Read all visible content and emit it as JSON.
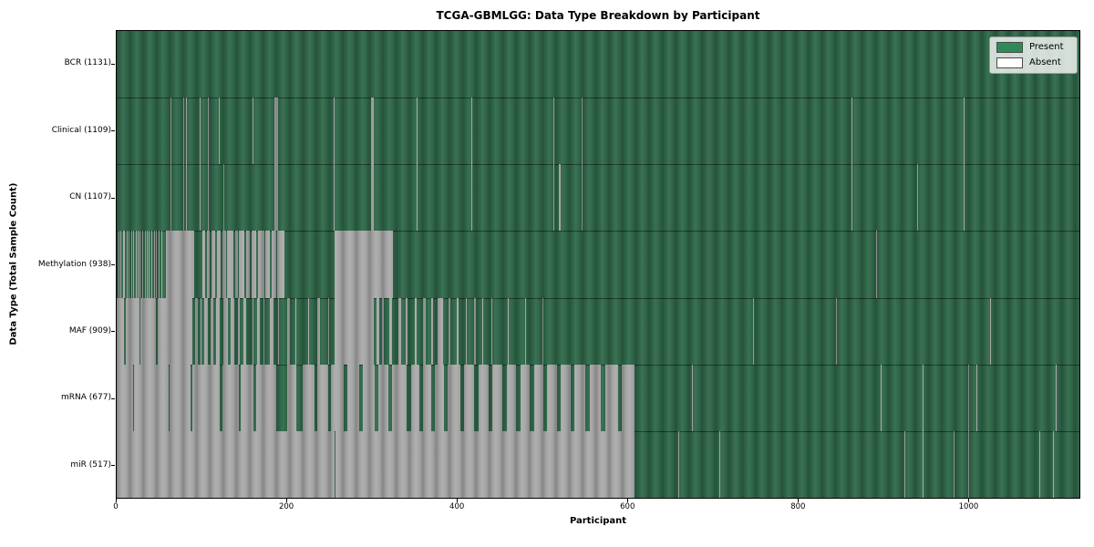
{
  "chart_data": {
    "type": "heatmap",
    "title": "TCGA-GBMLGG: Data Type Breakdown by Participant",
    "xlabel": "Participant",
    "ylabel": "Data Type (Total Sample Count)",
    "n_participants": 1131,
    "x_ticks": [
      0,
      200,
      400,
      600,
      800,
      1000
    ],
    "grid": false,
    "legend": {
      "position": "upper right",
      "present_label": "Present",
      "absent_label": "Absent"
    },
    "colors": {
      "present": "#2E8B57",
      "present_render": "#31694B",
      "absent": "#FFFFFF",
      "absent_render": "#ABABAB"
    },
    "rows": [
      {
        "name": "BCR",
        "label": "BCR (1131)",
        "present_count": 1131,
        "absent_ranges": []
      },
      {
        "name": "Clinical",
        "label": "Clinical (1109)",
        "present_count": 1109,
        "absent_ranges": [
          [
            63,
            63
          ],
          [
            78,
            78
          ],
          [
            81,
            81
          ],
          [
            97,
            97
          ],
          [
            107,
            107
          ],
          [
            120,
            120
          ],
          [
            160,
            160
          ],
          [
            185,
            189
          ],
          [
            255,
            255
          ],
          [
            299,
            301
          ],
          [
            352,
            352
          ],
          [
            417,
            417
          ],
          [
            513,
            513
          ],
          [
            546,
            546
          ],
          [
            863,
            863
          ],
          [
            995,
            995
          ]
        ]
      },
      {
        "name": "CN",
        "label": "CN (1107)",
        "present_count": 1107,
        "absent_ranges": [
          [
            63,
            63
          ],
          [
            78,
            78
          ],
          [
            81,
            81
          ],
          [
            97,
            97
          ],
          [
            107,
            107
          ],
          [
            125,
            125
          ],
          [
            185,
            189
          ],
          [
            255,
            255
          ],
          [
            299,
            301
          ],
          [
            352,
            352
          ],
          [
            417,
            417
          ],
          [
            513,
            513
          ],
          [
            519,
            519
          ],
          [
            521,
            521
          ],
          [
            546,
            546
          ],
          [
            863,
            863
          ],
          [
            940,
            940
          ],
          [
            995,
            995
          ]
        ]
      },
      {
        "name": "Methylation",
        "label": "Methylation (938)",
        "present_count": 938,
        "absent_ranges": [
          [
            2,
            2
          ],
          [
            4,
            4
          ],
          [
            7,
            7
          ],
          [
            9,
            9
          ],
          [
            12,
            12
          ],
          [
            14,
            14
          ],
          [
            17,
            17
          ],
          [
            19,
            19
          ],
          [
            22,
            22
          ],
          [
            25,
            25
          ],
          [
            27,
            27
          ],
          [
            30,
            30
          ],
          [
            33,
            33
          ],
          [
            35,
            35
          ],
          [
            38,
            38
          ],
          [
            41,
            41
          ],
          [
            44,
            44
          ],
          [
            46,
            46
          ],
          [
            49,
            49
          ],
          [
            52,
            52
          ],
          [
            58,
            90
          ],
          [
            101,
            103
          ],
          [
            106,
            108
          ],
          [
            111,
            115
          ],
          [
            118,
            121
          ],
          [
            124,
            127
          ],
          [
            130,
            136
          ],
          [
            139,
            141
          ],
          [
            144,
            149
          ],
          [
            152,
            155
          ],
          [
            158,
            163
          ],
          [
            166,
            172
          ],
          [
            175,
            179
          ],
          [
            182,
            186
          ],
          [
            189,
            196
          ],
          [
            256,
            324
          ],
          [
            892,
            892
          ]
        ]
      },
      {
        "name": "MAF",
        "label": "MAF (909)",
        "present_count": 909,
        "absent_ranges": [
          [
            0,
            8
          ],
          [
            11,
            26
          ],
          [
            28,
            45
          ],
          [
            48,
            88
          ],
          [
            92,
            94
          ],
          [
            98,
            99
          ],
          [
            103,
            106
          ],
          [
            110,
            112
          ],
          [
            117,
            120
          ],
          [
            125,
            130
          ],
          [
            134,
            137
          ],
          [
            142,
            144
          ],
          [
            149,
            151
          ],
          [
            160,
            160
          ],
          [
            165,
            167
          ],
          [
            172,
            172
          ],
          [
            180,
            183
          ],
          [
            190,
            190
          ],
          [
            200,
            202
          ],
          [
            210,
            210
          ],
          [
            225,
            225
          ],
          [
            236,
            238
          ],
          [
            248,
            248
          ],
          [
            256,
            301
          ],
          [
            305,
            307
          ],
          [
            312,
            313
          ],
          [
            320,
            322
          ],
          [
            331,
            333
          ],
          [
            340,
            341
          ],
          [
            350,
            351
          ],
          [
            360,
            362
          ],
          [
            370,
            371
          ],
          [
            377,
            382
          ],
          [
            390,
            391
          ],
          [
            400,
            401
          ],
          [
            410,
            410
          ],
          [
            420,
            421
          ],
          [
            430,
            430
          ],
          [
            440,
            440
          ],
          [
            460,
            460
          ],
          [
            480,
            480
          ],
          [
            500,
            500
          ],
          [
            748,
            748
          ],
          [
            845,
            845
          ],
          [
            1026,
            1026
          ]
        ]
      },
      {
        "name": "mRNA",
        "label": "mRNA (677)",
        "present_count": 677,
        "absent_ranges": [
          [
            0,
            18
          ],
          [
            20,
            60
          ],
          [
            62,
            86
          ],
          [
            89,
            120
          ],
          [
            124,
            142
          ],
          [
            146,
            160
          ],
          [
            164,
            186
          ],
          [
            200,
            210
          ],
          [
            218,
            231
          ],
          [
            236,
            247
          ],
          [
            252,
            266
          ],
          [
            271,
            284
          ],
          [
            289,
            302
          ],
          [
            307,
            318
          ],
          [
            323,
            340
          ],
          [
            346,
            355
          ],
          [
            360,
            369
          ],
          [
            374,
            383
          ],
          [
            389,
            403
          ],
          [
            408,
            419
          ],
          [
            425,
            436
          ],
          [
            441,
            452
          ],
          [
            458,
            468
          ],
          [
            474,
            484
          ],
          [
            490,
            500
          ],
          [
            506,
            516
          ],
          [
            522,
            532
          ],
          [
            538,
            550
          ],
          [
            556,
            568
          ],
          [
            574,
            588
          ],
          [
            593,
            607
          ],
          [
            676,
            676
          ],
          [
            897,
            897
          ],
          [
            947,
            947
          ],
          [
            1000,
            1000
          ],
          [
            1010,
            1010
          ],
          [
            1103,
            1103
          ]
        ]
      },
      {
        "name": "miR",
        "label": "miR (517)",
        "present_count": 517,
        "absent_ranges": [
          [
            0,
            187
          ],
          [
            189,
            255
          ],
          [
            257,
            607
          ],
          [
            660,
            660
          ],
          [
            708,
            708
          ],
          [
            925,
            925
          ],
          [
            947,
            947
          ],
          [
            983,
            983
          ],
          [
            1000,
            1000
          ],
          [
            1084,
            1084
          ],
          [
            1100,
            1100
          ]
        ]
      }
    ]
  }
}
